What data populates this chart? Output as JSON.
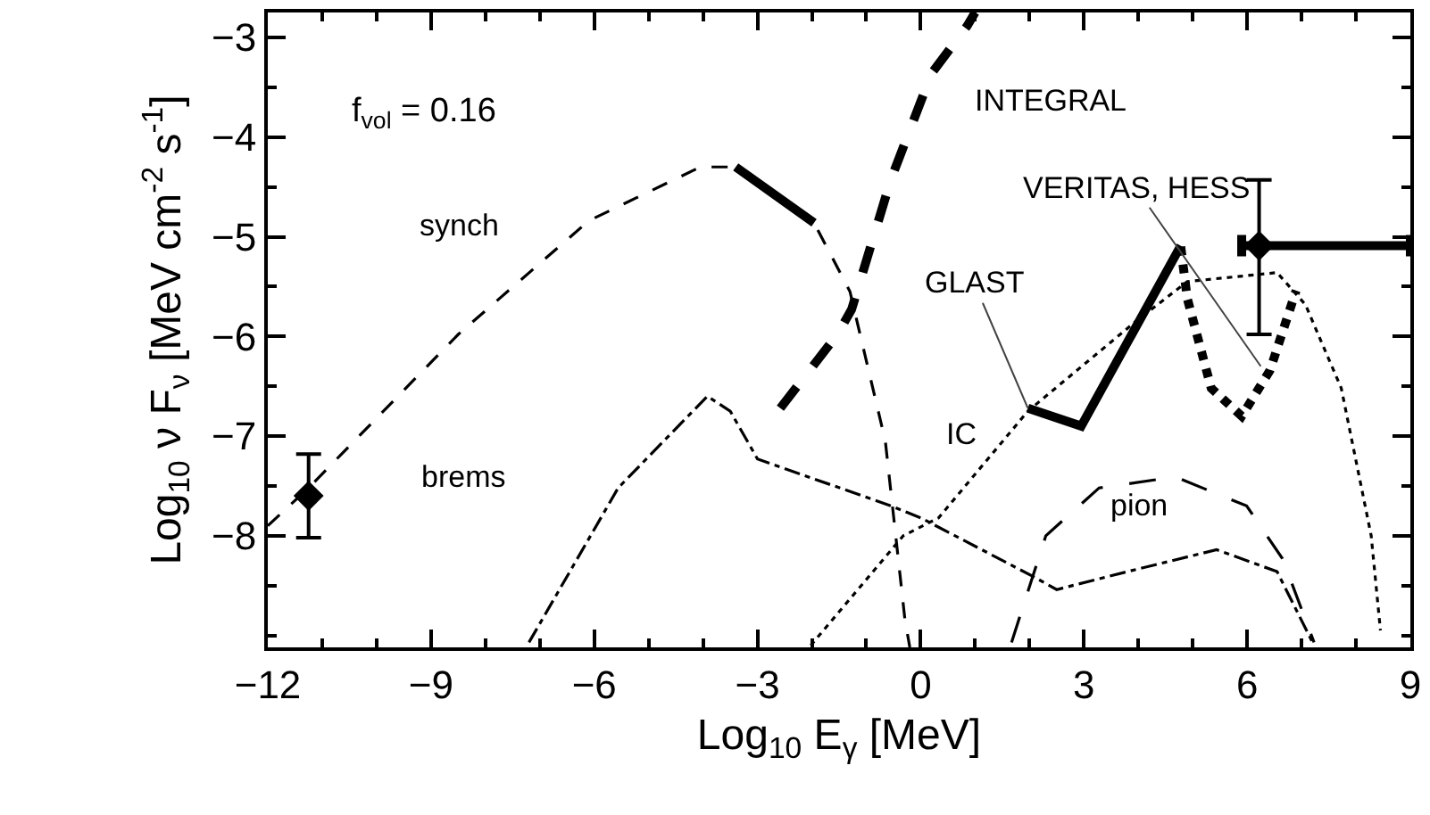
{
  "chart_data": {
    "type": "line",
    "xlabel": "Log$_{10}$ E$_{γ}$ [MeV]",
    "ylabel": "Log$_{10}$ ν F$_{ν}$ [MeV cm$^{-2}$ s$^{-1}$]",
    "xlim": [
      -12,
      9
    ],
    "ylim": [
      -9.12,
      -2.75
    ],
    "xticks": [
      -12,
      -9,
      -6,
      -3,
      0,
      3,
      6,
      9
    ],
    "yticks": [
      -8,
      -7,
      -6,
      -5,
      -4,
      -3
    ],
    "series": [
      {
        "color": "#000000",
        "line_style": "dashed",
        "x": [
          -12,
          -11.25,
          -8.5,
          -6.1,
          -4.05,
          -3.4,
          -1.96,
          -1.3,
          -0.65,
          -0.29,
          -0.2
        ],
        "values": [
          -7.9,
          -7.52,
          -5.98,
          -4.84,
          -4.3,
          -4.3,
          -4.86,
          -5.55,
          -7.05,
          -8.84,
          -9.12
        ]
      },
      {
        "color": "#000000",
        "line_style": "solid",
        "x": [
          -3.4,
          -1.96
        ],
        "values": [
          -4.3,
          -4.86
        ]
      },
      {
        "color": "#000000",
        "line_style": "dashdot",
        "x": [
          -7.2,
          -5.56,
          -3.92,
          -3.5,
          -3.0,
          -0.55,
          0.0,
          2.07,
          2.5,
          3.8,
          5.44,
          6.55,
          7.23
        ],
        "values": [
          -9.07,
          -7.52,
          -6.6,
          -6.75,
          -7.23,
          -7.7,
          -7.82,
          -8.41,
          -8.54,
          -8.36,
          -8.14,
          -8.36,
          -9.1
        ]
      },
      {
        "color": "#000000",
        "line_style": "dotted",
        "x": [
          -2.02,
          -0.32,
          0.33,
          1.97,
          3.93,
          4.9,
          6.55,
          7.07,
          7.73,
          8.28,
          8.45
        ],
        "values": [
          -9.1,
          -8.0,
          -7.82,
          -6.75,
          -5.86,
          -5.45,
          -5.36,
          -5.68,
          -6.52,
          -8.0,
          -8.95
        ]
      },
      {
        "color": "#000000",
        "line_style": "longdash",
        "x": [
          1.67,
          2.3,
          3.28,
          4.68,
          5.99,
          6.65,
          7.23
        ],
        "values": [
          -9.07,
          -8.0,
          -7.52,
          -7.41,
          -7.7,
          -8.23,
          -9.07
        ]
      },
      {
        "color": "#000000",
        "line_style": "dashed",
        "x": [
          -2.58,
          -1.53,
          -1.27,
          -0.55,
          0.2,
          0.86,
          1.0
        ],
        "values": [
          -6.72,
          -5.98,
          -5.73,
          -4.43,
          -3.36,
          -2.88,
          -2.75
        ]
      },
      {
        "color": "#000000",
        "line_style": "solid",
        "x": [
          1.97,
          2.95,
          4.78
        ],
        "values": [
          -6.72,
          -6.9,
          -5.09
        ]
      },
      {
        "color": "#000000",
        "line_style": "dotted",
        "x": [
          4.78,
          4.9,
          5.34,
          5.9,
          6.42,
          6.9
        ],
        "values": [
          -5.1,
          -5.62,
          -6.52,
          -6.8,
          -6.34,
          -5.54
        ]
      },
      {
        "type": "scatter",
        "marker": "diamond",
        "color": "#000000",
        "x": [
          -11.25
        ],
        "values": [
          -7.6
        ],
        "errors": [
          [
            -8.02,
            -7.18
          ]
        ]
      },
      {
        "type": "scatter",
        "marker": "diamond",
        "color": "#000000",
        "x": [
          6.22
        ],
        "values": [
          -5.09
        ],
        "errors": [
          [
            -5.98,
            -4.43
          ]
        ],
        "xerrors": [
          [
            5.9,
            9
          ]
        ]
      }
    ],
    "annotations": [
      "f$_{vol}$ = 0.16",
      "synch",
      "brems",
      "INTEGRAL",
      {
        "text": "VERITAS, HESS",
        "x": 6.25,
        "y": -6.3
      },
      {
        "text": "GLAST",
        "x": 1.97,
        "y": -6.72
      },
      "IC",
      "pion"
    ]
  }
}
